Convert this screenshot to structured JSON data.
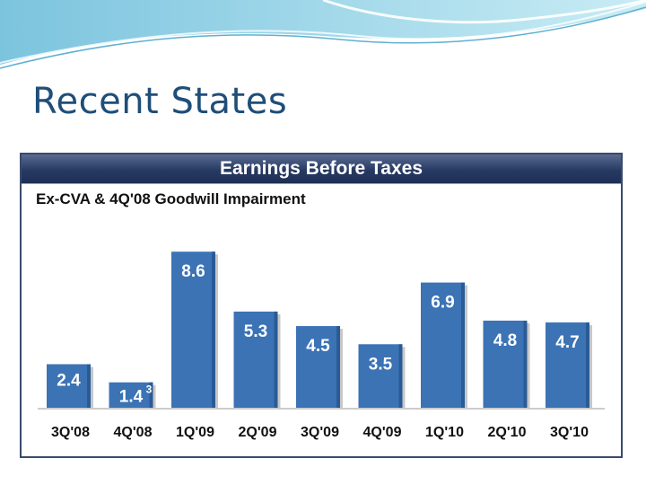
{
  "slide": {
    "title": "Recent States"
  },
  "chart_data": {
    "type": "bar",
    "title": "Earnings Before Taxes",
    "subtitle": "Ex-CVA & 4Q'08 Goodwill Impairment",
    "categories": [
      "3Q'08",
      "4Q'08",
      "1Q'09",
      "2Q'09",
      "3Q'09",
      "4Q'09",
      "1Q'10",
      "2Q'10",
      "3Q'10"
    ],
    "values": [
      2.4,
      1.4,
      8.6,
      5.3,
      4.5,
      3.5,
      6.9,
      4.8,
      4.7
    ],
    "footnotes": {
      "1": "3"
    },
    "ylim": [
      0,
      9.7
    ],
    "grid": false,
    "legend": "none",
    "colors": {
      "bar": "#3b73b5",
      "bar_shade": "#2a5b96",
      "label": "#ffffff",
      "header": "#273a63",
      "title": "#1f4e79"
    }
  }
}
